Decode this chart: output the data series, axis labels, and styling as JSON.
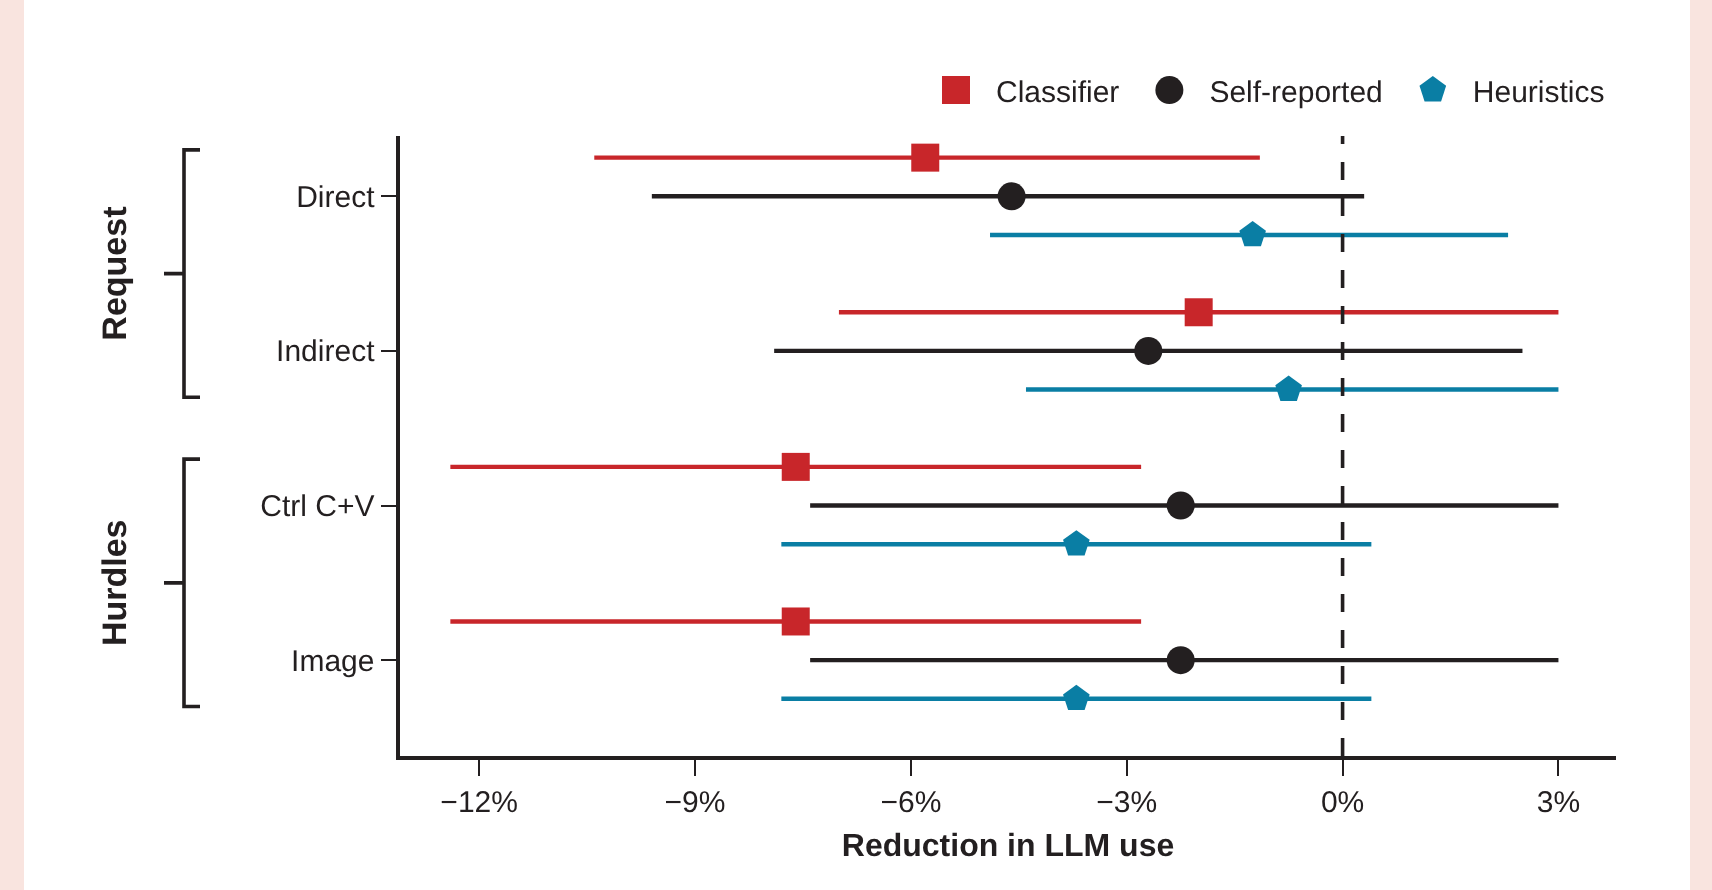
{
  "chart_data": {
    "type": "scatter",
    "orientation": "horizontal",
    "xlabel": "Reduction in LLM use",
    "categories": [
      "Direct",
      "Indirect",
      "Ctrl C+V",
      "Image"
    ],
    "series": [
      {
        "name": "Classifier",
        "color": "#c8262a",
        "marker": "square",
        "values": [
          -5.8,
          -2.0,
          -7.6,
          -7.6
        ],
        "errors": [
          [
            -10.4,
            -1.15
          ],
          [
            -7.0,
            3.0
          ],
          [
            -12.4,
            -2.8
          ],
          [
            -12.4,
            -2.8
          ]
        ]
      },
      {
        "name": "Self-reported",
        "color": "#231f20",
        "marker": "circle",
        "values": [
          -4.6,
          -2.7,
          -2.25,
          -2.25
        ],
        "errors": [
          [
            -9.6,
            0.3
          ],
          [
            -7.9,
            2.5
          ],
          [
            -7.4,
            3.0
          ],
          [
            -7.4,
            3.0
          ]
        ]
      },
      {
        "name": "Heuristics",
        "color": "#0a7ea4",
        "values": [
          -1.25,
          -0.75,
          -3.7,
          -3.7
        ],
        "errors": [
          [
            -4.9,
            2.3
          ],
          [
            -4.4,
            3.0
          ],
          [
            -7.8,
            0.4
          ],
          [
            -7.8,
            0.4
          ]
        ]
      }
    ],
    "xlim": [
      -13.1,
      3.8
    ],
    "xticks": [
      {
        "value": -12,
        "label": "−12%"
      },
      {
        "value": -9,
        "label": "−9%"
      },
      {
        "value": -6,
        "label": "−6%"
      },
      {
        "value": -3,
        "label": "−3%"
      },
      {
        "value": 0,
        "label": "0%"
      },
      {
        "value": 3,
        "label": "3%"
      }
    ],
    "ref_lines": [
      {
        "axis": "x",
        "value": 0,
        "color": "#231f20",
        "line_style": "dashed"
      }
    ],
    "annotations": [
      "Request",
      "Hurdles"
    ],
    "legend": "top right",
    "grid": false
  }
}
